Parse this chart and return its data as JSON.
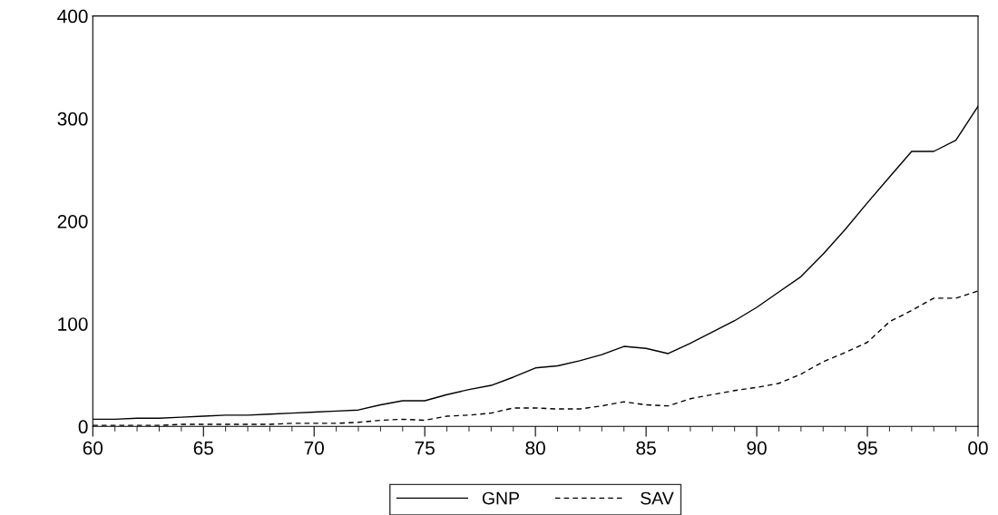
{
  "chart_data": {
    "type": "line",
    "x": [
      1960,
      1961,
      1962,
      1963,
      1964,
      1965,
      1966,
      1967,
      1968,
      1969,
      1970,
      1971,
      1972,
      1973,
      1974,
      1975,
      1976,
      1977,
      1978,
      1979,
      1980,
      1981,
      1982,
      1983,
      1984,
      1985,
      1986,
      1987,
      1988,
      1989,
      1990,
      1991,
      1992,
      1993,
      1994,
      1995,
      1996,
      1997,
      1998,
      1999,
      2000
    ],
    "series": [
      {
        "name": "GNP",
        "color": "#000000",
        "line_style": "solid",
        "values": [
          7,
          7,
          8,
          8,
          9,
          10,
          11,
          11,
          12,
          13,
          14,
          15,
          16,
          21,
          25,
          25,
          31,
          36,
          40,
          48,
          57,
          59,
          64,
          70,
          78,
          76,
          71,
          81,
          92,
          103,
          116,
          131,
          146,
          168,
          192,
          218,
          243,
          268,
          268,
          279,
          312
        ]
      },
      {
        "name": "SAV",
        "color": "#000000",
        "line_style": "dashed",
        "values": [
          1,
          1,
          1,
          1,
          2,
          2,
          2,
          2,
          2,
          3,
          3,
          3,
          4,
          6,
          7,
          6,
          10,
          11,
          13,
          18,
          18,
          17,
          17,
          20,
          24,
          21,
          20,
          27,
          31,
          35,
          38,
          42,
          51,
          63,
          72,
          82,
          102,
          113,
          125,
          125,
          132
        ]
      }
    ],
    "xlim": [
      1960,
      2000
    ],
    "xticks": [
      {
        "value": 1960,
        "label": "60"
      },
      {
        "value": 1965,
        "label": "65"
      },
      {
        "value": 1970,
        "label": "70"
      },
      {
        "value": 1975,
        "label": "75"
      },
      {
        "value": 1980,
        "label": "80"
      },
      {
        "value": 1985,
        "label": "85"
      },
      {
        "value": 1990,
        "label": "90"
      },
      {
        "value": 1995,
        "label": "95"
      },
      {
        "value": 2000,
        "label": "00"
      }
    ],
    "ylim": [
      0,
      400
    ],
    "yticks": [
      0,
      100,
      200,
      300,
      400
    ],
    "grid": false,
    "legend": "bottom"
  }
}
